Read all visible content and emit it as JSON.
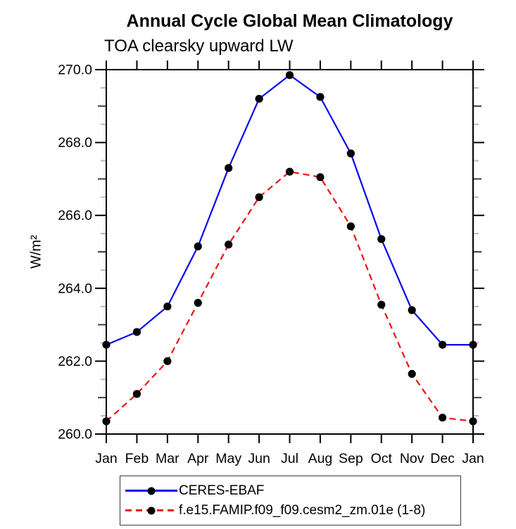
{
  "header": {
    "title": "Annual Cycle Global Mean Climatology",
    "subtitle": "TOA clearsky upward LW"
  },
  "axes": {
    "y_label": "W/m²",
    "x_tick_labels": [
      "Jan",
      "Feb",
      "Mar",
      "Apr",
      "May",
      "Jun",
      "Jul",
      "Aug",
      "Sep",
      "Oct",
      "Nov",
      "Dec",
      "Jan"
    ],
    "y_tick_labels": [
      "260.0",
      "262.0",
      "264.0",
      "266.0",
      "268.0",
      "270.0"
    ]
  },
  "legend": {
    "items": [
      {
        "label": "CERES-EBAF",
        "color": "#0404ee",
        "style": "solid",
        "marker": "black-dot"
      },
      {
        "label": "f.e15.FAMIP.f09_f09.cesm2_zm.01e (1-8)",
        "color": "#ee1111",
        "style": "dashed",
        "marker": "black-dot"
      }
    ]
  },
  "chart_data": {
    "type": "line",
    "title": "Annual Cycle Global Mean Climatology",
    "subtitle": "TOA clearsky upward LW",
    "ylabel": "W/m²",
    "xlabel": "",
    "categories": [
      "Jan",
      "Feb",
      "Mar",
      "Apr",
      "May",
      "Jun",
      "Jul",
      "Aug",
      "Sep",
      "Oct",
      "Nov",
      "Dec",
      "Jan"
    ],
    "series": [
      {
        "name": "CERES-EBAF",
        "color": "#0404ee",
        "line_style": "solid",
        "marker": "circle",
        "marker_color": "#000000",
        "values": [
          262.45,
          262.8,
          263.5,
          265.15,
          267.3,
          269.2,
          269.85,
          269.25,
          267.7,
          265.35,
          263.4,
          262.45,
          262.45
        ]
      },
      {
        "name": "f.e15.FAMIP.f09_f09.cesm2_zm.01e (1-8)",
        "color": "#ee1111",
        "line_style": "dashed",
        "marker": "circle",
        "marker_color": "#000000",
        "values": [
          260.35,
          261.1,
          262.0,
          263.6,
          265.2,
          266.5,
          267.2,
          267.05,
          265.7,
          263.55,
          261.65,
          260.45,
          260.35
        ]
      }
    ],
    "ylim": [
      260,
      270
    ],
    "y_ticks": [
      {
        "value": 260,
        "label": "260.0"
      },
      {
        "value": 262,
        "label": "262.0"
      },
      {
        "value": 264,
        "label": "264.0"
      },
      {
        "value": 266,
        "label": "266.0"
      },
      {
        "value": 268,
        "label": "268.0"
      },
      {
        "value": 270,
        "label": "270.0"
      }
    ],
    "y_mid_tick_step": 1.0,
    "y_minor_tick_step": 0.5,
    "grid": false,
    "legend_position": "bottom"
  }
}
